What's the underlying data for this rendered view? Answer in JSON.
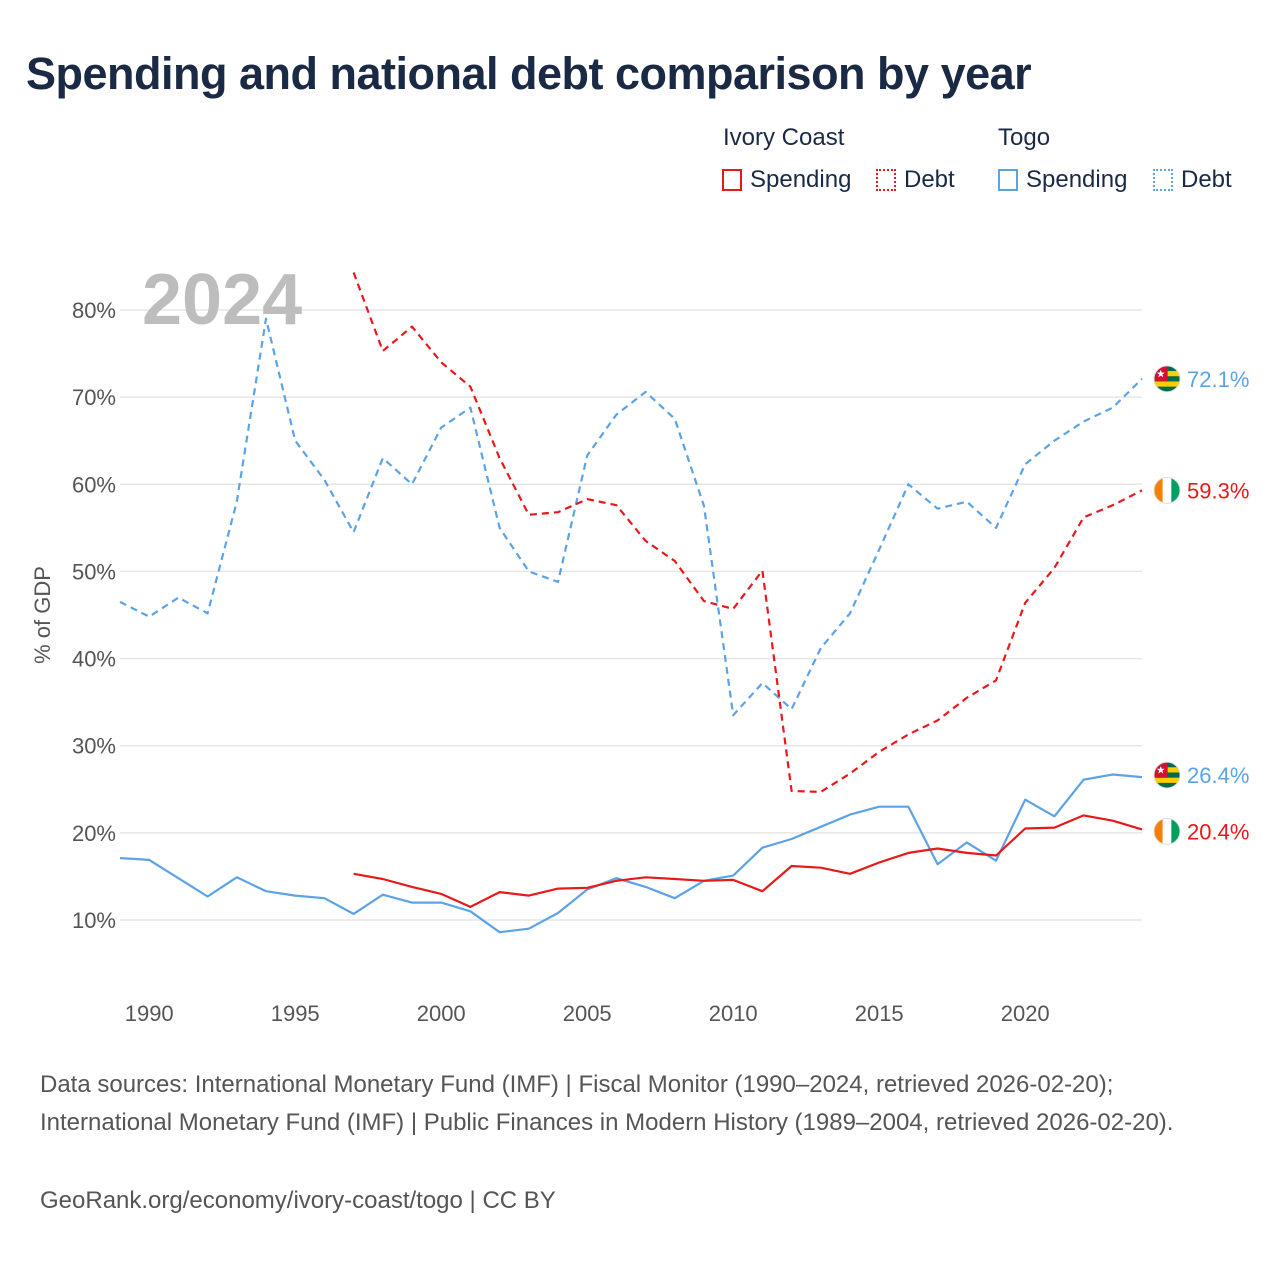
{
  "title": "Spending and national debt comparison by year",
  "legend": {
    "ivory_coast": "Ivory Coast",
    "togo": "Togo",
    "spending": "Spending",
    "debt": "Debt"
  },
  "colors": {
    "ivory_coast": "#e8191a",
    "togo": "#5ba3e6",
    "title": "#1b2a44",
    "grid": "#e6e6e6",
    "axis_text": "#555555",
    "year_watermark": "#bdbdbd"
  },
  "year_label": "2024",
  "chart_data": {
    "type": "line",
    "ylabel": "% of GDP",
    "xlim": [
      1989,
      2024
    ],
    "ylim": [
      0,
      90
    ],
    "x_ticks": [
      1990,
      1995,
      2000,
      2005,
      2010,
      2015,
      2020
    ],
    "x_tick_labels": [
      "1990",
      "1995",
      "2000",
      "2005",
      "2010",
      "2015",
      "2020"
    ],
    "y_ticks": [
      10,
      20,
      30,
      40,
      50,
      60,
      70,
      80
    ],
    "y_tick_labels": [
      "10%",
      "20%",
      "30%",
      "40%",
      "50%",
      "60%",
      "70%",
      "80%"
    ],
    "series": [
      {
        "name": "Togo Debt",
        "country": "togo",
        "style": "dashed",
        "x": [
          1989,
          1990,
          1991,
          1992,
          1993,
          1994,
          1995,
          1996,
          1997,
          1998,
          1999,
          2000,
          2001,
          2002,
          2003,
          2004,
          2005,
          2006,
          2007,
          2008,
          2009,
          2010,
          2011,
          2012,
          2013,
          2014,
          2015,
          2016,
          2017,
          2018,
          2019,
          2020,
          2021,
          2022,
          2023,
          2024
        ],
        "values": [
          46.5,
          44.8,
          47.0,
          45.2,
          58.0,
          79.0,
          65.0,
          60.5,
          54.5,
          63.0,
          60.0,
          66.5,
          68.8,
          55.0,
          50.0,
          48.8,
          63.3,
          68.0,
          70.6,
          67.5,
          57.5,
          33.5,
          37.2,
          34.2,
          41.2,
          45.2,
          52.5,
          60.0,
          57.2,
          58.0,
          55.0,
          62.3,
          65.0,
          67.2,
          68.8,
          72.1
        ]
      },
      {
        "name": "Ivory Coast Debt",
        "country": "ivory_coast",
        "style": "dashed",
        "x": [
          1997,
          1998,
          1999,
          2000,
          2001,
          2002,
          2003,
          2004,
          2005,
          2006,
          2007,
          2008,
          2009,
          2010,
          2011,
          2012,
          2013,
          2014,
          2015,
          2016,
          2017,
          2018,
          2019,
          2020,
          2021,
          2022,
          2023,
          2024
        ],
        "values": [
          84.3,
          75.3,
          78.1,
          74.0,
          71.2,
          63.0,
          56.5,
          56.8,
          58.3,
          57.6,
          53.5,
          51.2,
          46.6,
          45.7,
          50.1,
          24.8,
          24.7,
          26.8,
          29.3,
          31.3,
          32.9,
          35.5,
          37.5,
          46.4,
          50.4,
          56.2,
          57.6,
          59.3
        ]
      },
      {
        "name": "Togo Spending",
        "country": "togo",
        "style": "solid",
        "x": [
          1989,
          1990,
          1991,
          1992,
          1993,
          1994,
          1995,
          1996,
          1997,
          1998,
          1999,
          2000,
          2001,
          2002,
          2003,
          2004,
          2005,
          2006,
          2007,
          2008,
          2009,
          2010,
          2011,
          2012,
          2013,
          2014,
          2015,
          2016,
          2017,
          2018,
          2019,
          2020,
          2021,
          2022,
          2023,
          2024
        ],
        "values": [
          17.1,
          16.9,
          14.8,
          12.7,
          14.9,
          13.3,
          12.8,
          12.5,
          10.7,
          12.9,
          12.0,
          12.0,
          11.0,
          8.6,
          9.0,
          10.8,
          13.5,
          14.8,
          13.8,
          12.5,
          14.5,
          15.1,
          18.3,
          19.3,
          20.7,
          22.1,
          23.0,
          23.0,
          16.4,
          18.9,
          16.8,
          23.8,
          21.9,
          26.1,
          26.7,
          26.4
        ]
      },
      {
        "name": "Ivory Coast Spending",
        "country": "ivory_coast",
        "style": "solid",
        "x": [
          1997,
          1998,
          1999,
          2000,
          2001,
          2002,
          2003,
          2004,
          2005,
          2006,
          2007,
          2008,
          2009,
          2010,
          2011,
          2012,
          2013,
          2014,
          2015,
          2016,
          2017,
          2018,
          2019,
          2020,
          2021,
          2022,
          2023,
          2024
        ],
        "values": [
          15.3,
          14.7,
          13.8,
          13.0,
          11.5,
          13.2,
          12.8,
          13.6,
          13.7,
          14.5,
          14.9,
          14.7,
          14.5,
          14.6,
          13.3,
          16.2,
          16.0,
          15.3,
          16.6,
          17.7,
          18.2,
          17.7,
          17.4,
          20.5,
          20.6,
          22.0,
          21.4,
          20.4
        ]
      }
    ],
    "end_labels": [
      {
        "series": "Togo Debt",
        "text": "72.1%",
        "value": 72.1,
        "flag": "togo-flag"
      },
      {
        "series": "Ivory Coast Debt",
        "text": "59.3%",
        "value": 59.3,
        "flag": "ivory-coast-flag"
      },
      {
        "series": "Togo Spending",
        "text": "26.4%",
        "value": 26.4,
        "flag": "togo-flag"
      },
      {
        "series": "Ivory Coast Spending",
        "text": "20.4%",
        "value": 20.4,
        "flag": "ivory-coast-flag"
      }
    ]
  },
  "footer": {
    "sources": "Data sources: International Monetary Fund (IMF) | Fiscal Monitor (1990–2024, retrieved 2026-02-20); International Monetary Fund (IMF) | Public Finances in Modern History (1989–2004, retrieved 2026-02-20).",
    "attribution": "GeoRank.org/economy/ivory-coast/togo | CC BY"
  }
}
